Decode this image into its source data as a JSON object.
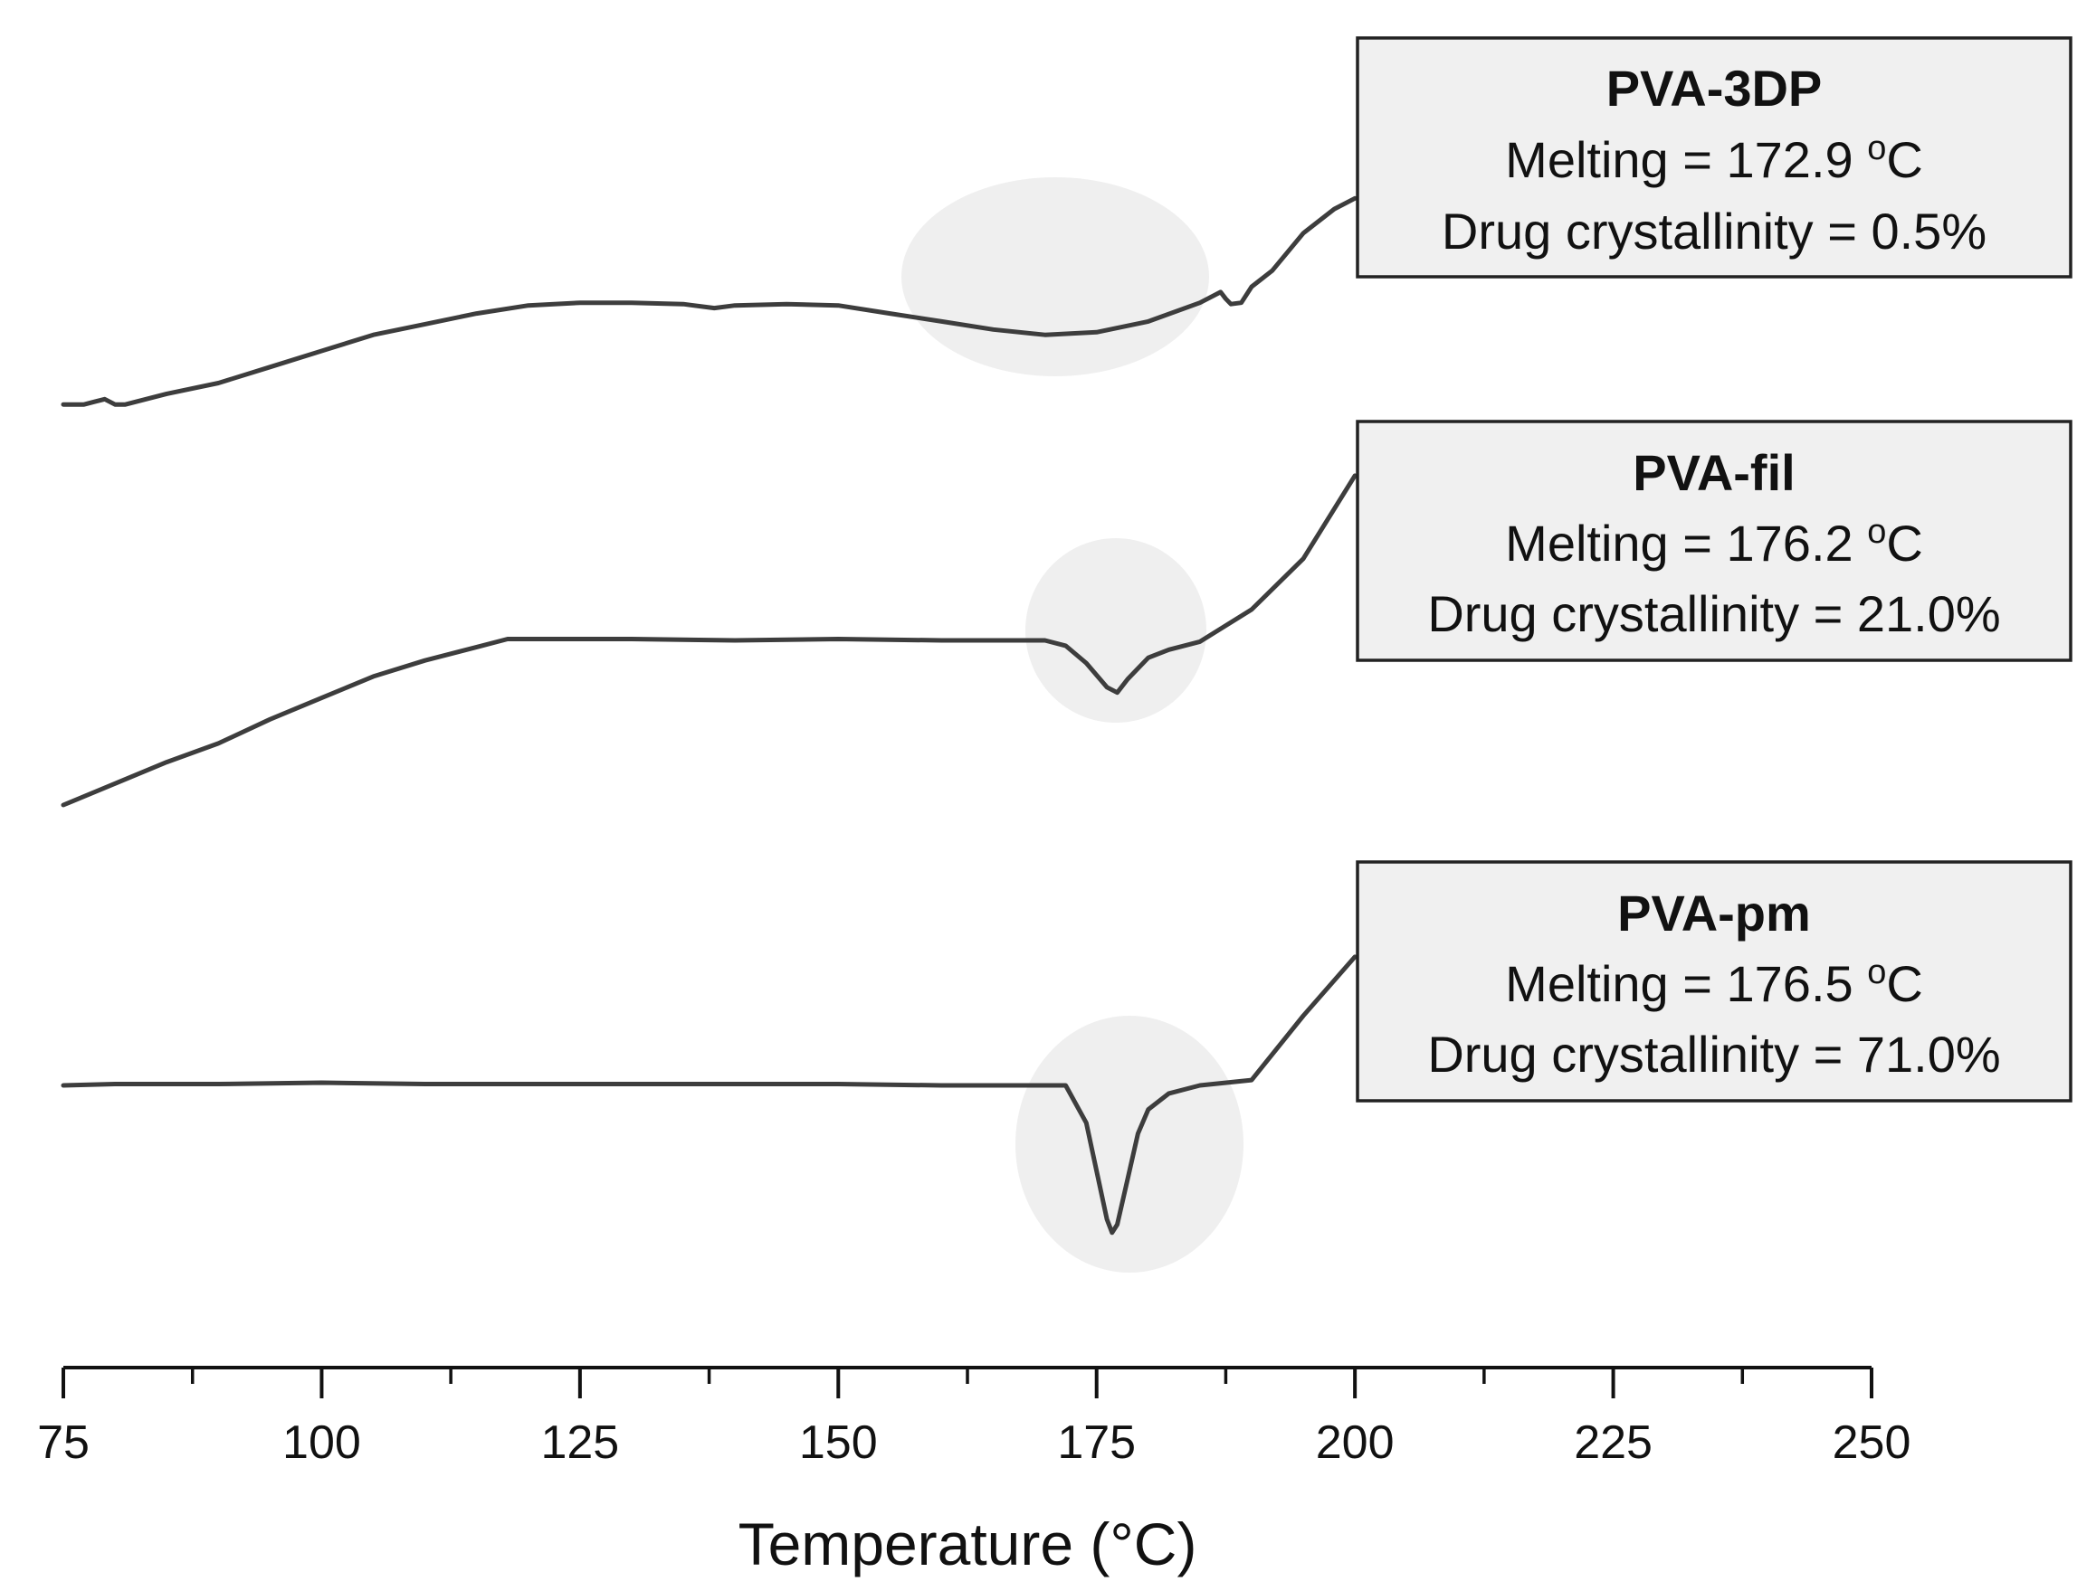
{
  "chart_data": {
    "type": "line",
    "title": "",
    "xlabel": "Temperature (°C)",
    "ylabel": "",
    "xlim": [
      75,
      250
    ],
    "x_ticks": [
      "75",
      "100",
      "125",
      "150",
      "175",
      "200",
      "225",
      "250"
    ],
    "x_tick_values": [
      75,
      100,
      125,
      150,
      175,
      200,
      225,
      250
    ],
    "x_minor_ticks": [
      87.5,
      112.5,
      137.5,
      162.5,
      187.5,
      212.5,
      237.5
    ],
    "series": [
      {
        "name": "PVA-3DP",
        "note": "heat flow, arbitrary units (offset trace)",
        "x": [
          75,
          77,
          78,
          79,
          80,
          81,
          85,
          90,
          95,
          100,
          105,
          110,
          115,
          120,
          125,
          130,
          135,
          138,
          140,
          145,
          150,
          155,
          160,
          165,
          170,
          175,
          180,
          185,
          187,
          187.5,
          188,
          189,
          190,
          192,
          195,
          198,
          200
        ],
        "y": [
          11.0,
          11.0,
          11.2,
          11.4,
          11.0,
          11.0,
          11.8,
          12.6,
          13.8,
          15.0,
          16.2,
          17.0,
          17.8,
          18.4,
          18.6,
          18.6,
          18.5,
          18.2,
          18.4,
          18.5,
          18.4,
          17.8,
          17.2,
          16.6,
          16.2,
          16.4,
          17.2,
          18.6,
          19.4,
          18.9,
          18.5,
          18.6,
          19.8,
          21.0,
          23.8,
          25.6,
          26.4
        ]
      },
      {
        "name": "PVA-fil",
        "note": "heat flow, arbitrary units (offset trace)",
        "x": [
          75,
          80,
          85,
          90,
          95,
          100,
          105,
          110,
          115,
          118,
          120,
          130,
          140,
          150,
          160,
          170,
          172,
          174,
          176,
          177,
          178,
          180,
          182,
          185,
          190,
          195,
          200
        ],
        "y": [
          0.0,
          1.6,
          3.2,
          4.6,
          6.4,
          8.0,
          9.6,
          10.8,
          11.8,
          12.4,
          12.4,
          12.4,
          12.3,
          12.4,
          12.3,
          12.3,
          11.9,
          10.6,
          8.8,
          8.4,
          9.4,
          11.0,
          11.6,
          12.2,
          14.6,
          18.4,
          24.6
        ]
      },
      {
        "name": "PVA-pm",
        "note": "heat flow, arbitrary units (offset trace)",
        "x": [
          75,
          80,
          90,
          100,
          110,
          120,
          130,
          140,
          150,
          160,
          170,
          172,
          174,
          175,
          176,
          176.5,
          177,
          178,
          179,
          180,
          182,
          185,
          190,
          195,
          200
        ],
        "y": [
          0.0,
          0.1,
          0.1,
          0.2,
          0.1,
          0.1,
          0.1,
          0.1,
          0.1,
          0.0,
          0.0,
          0.0,
          -2.8,
          -6.4,
          -10.0,
          -11.0,
          -10.4,
          -7.0,
          -3.6,
          -1.8,
          -0.6,
          0.0,
          0.4,
          5.2,
          9.6
        ]
      }
    ],
    "annotations": [
      {
        "title": "PVA-3DP",
        "melting": "Melting = 172.9 ",
        "unit_sup": "o",
        "unit": "C",
        "crystallinity": "Drug crystallinity = 0.5%"
      },
      {
        "title": "PVA-fil",
        "melting": "Melting = 176.2 ",
        "unit_sup": "o",
        "unit": "C",
        "crystallinity": "Drug crystallinity = 21.0%"
      },
      {
        "title": "PVA-pm",
        "melting": "Melting = 176.5 ",
        "unit_sup": "o",
        "unit": "C",
        "crystallinity": "Drug crystallinity = 71.0%"
      }
    ],
    "highlighted_regions": [
      {
        "series": "PVA-3DP",
        "center_x": 172.9
      },
      {
        "series": "PVA-fil",
        "center_x": 176.2
      },
      {
        "series": "PVA-pm",
        "center_x": 176.5
      }
    ],
    "colors": {
      "trace": "#3d3d3d",
      "highlight": "#efefef",
      "box_fill": "#f0f0f0",
      "box_stroke": "#222222"
    }
  }
}
